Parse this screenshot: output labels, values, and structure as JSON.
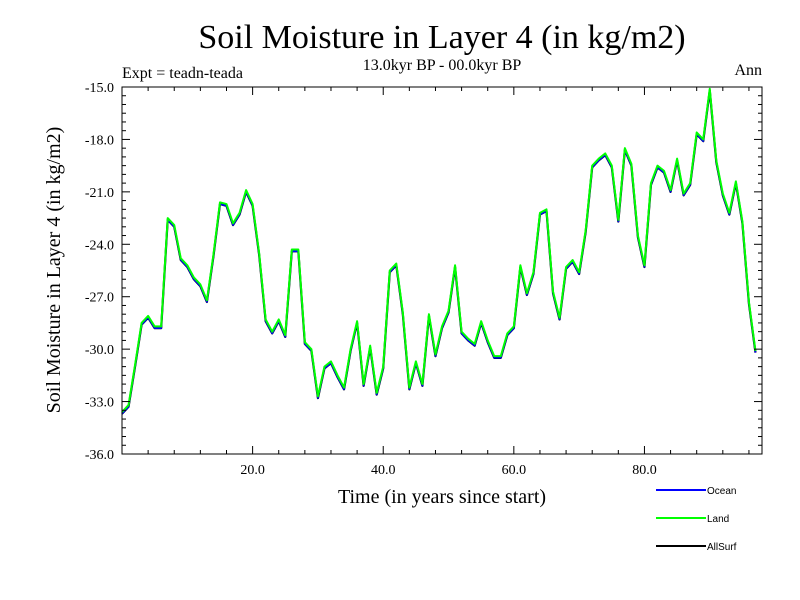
{
  "chart_data": {
    "type": "line",
    "title": "Soil Moisture in Layer 4 (in kg/m2)",
    "subtitle": "13.0kyr BP - 00.0kyr BP",
    "left_annotation": "Expt = teadn-teada",
    "right_annotation": "Ann",
    "xlabel": "Time (in years since start)",
    "ylabel": "Soil Moisture in Layer 4 (in kg/m2)",
    "xlim": [
      0,
      98
    ],
    "ylim": [
      -36.0,
      -15.0
    ],
    "x_ticks": [
      20,
      40,
      60,
      80
    ],
    "x_tick_labels": [
      "20.0",
      "40.0",
      "60.0",
      "80.0"
    ],
    "y_ticks": [
      -36,
      -33,
      -30,
      -27,
      -24,
      -21,
      -18,
      -15
    ],
    "y_tick_labels": [
      "-36.0",
      "-33.0",
      "-30.0",
      "-27.0",
      "-24.0",
      "-21.0",
      "-18.0",
      "-15.0"
    ],
    "legend_position": "bottom-right",
    "x": [
      0,
      1,
      2,
      3,
      4,
      5,
      6,
      7,
      8,
      9,
      10,
      11,
      12,
      13,
      14,
      15,
      16,
      17,
      18,
      19,
      20,
      21,
      22,
      23,
      24,
      25,
      26,
      27,
      28,
      29,
      30,
      31,
      32,
      33,
      34,
      35,
      36,
      37,
      38,
      39,
      40,
      41,
      42,
      43,
      44,
      45,
      46,
      47,
      48,
      49,
      50,
      51,
      52,
      53,
      54,
      55,
      56,
      57,
      58,
      59,
      60,
      61,
      62,
      63,
      64,
      65,
      66,
      67,
      68,
      69,
      70,
      71,
      72,
      73,
      74,
      75,
      76,
      77,
      78,
      79,
      80,
      81,
      82,
      83,
      84,
      85,
      86,
      87,
      88,
      89,
      90,
      91,
      92,
      93,
      94,
      95,
      96,
      97
    ],
    "series": [
      {
        "name": "Ocean",
        "color": "#0000ff",
        "values": [
          -33.7,
          -33.3,
          -31.0,
          -28.6,
          -28.2,
          -28.8,
          -28.8,
          -22.6,
          -23.0,
          -24.9,
          -25.3,
          -26.0,
          -26.4,
          -27.3,
          -24.7,
          -21.7,
          -21.8,
          -22.9,
          -22.3,
          -21.0,
          -21.8,
          -24.6,
          -28.4,
          -29.1,
          -28.4,
          -29.3,
          -24.4,
          -24.4,
          -29.7,
          -30.1,
          -32.8,
          -31.1,
          -30.8,
          -31.6,
          -32.3,
          -30.1,
          -28.5,
          -32.1,
          -29.9,
          -32.6,
          -31.1,
          -25.6,
          -25.2,
          -28.0,
          -32.3,
          -30.8,
          -32.1,
          -28.1,
          -30.4,
          -28.8,
          -27.9,
          -25.3,
          -29.1,
          -29.5,
          -29.8,
          -28.5,
          -29.6,
          -30.5,
          -30.5,
          -29.2,
          -28.8,
          -25.3,
          -26.9,
          -25.7,
          -22.3,
          -22.1,
          -26.8,
          -28.3,
          -25.4,
          -25.0,
          -25.7,
          -23.3,
          -19.6,
          -19.2,
          -18.9,
          -19.6,
          -22.7,
          -18.6,
          -19.5,
          -23.6,
          -25.3,
          -20.6,
          -19.6,
          -19.9,
          -21.0,
          -19.2,
          -21.2,
          -20.6,
          -17.7,
          -18.1,
          -15.2,
          -19.3,
          -21.2,
          -22.3,
          -20.5,
          -22.8,
          -27.4,
          -30.2
        ]
      },
      {
        "name": "Land",
        "color": "#00ff00",
        "values": [
          -33.6,
          -33.2,
          -30.9,
          -28.5,
          -28.1,
          -28.7,
          -28.7,
          -22.5,
          -22.9,
          -24.8,
          -25.2,
          -25.9,
          -26.3,
          -27.2,
          -24.6,
          -21.6,
          -21.7,
          -22.8,
          -22.2,
          -20.9,
          -21.7,
          -24.5,
          -28.3,
          -29.0,
          -28.3,
          -29.2,
          -24.3,
          -24.3,
          -29.6,
          -30.0,
          -32.7,
          -31.0,
          -30.7,
          -31.5,
          -32.2,
          -30.0,
          -28.4,
          -32.0,
          -29.8,
          -32.5,
          -31.0,
          -25.5,
          -25.1,
          -27.9,
          -32.2,
          -30.7,
          -32.0,
          -28.0,
          -30.3,
          -28.7,
          -27.8,
          -25.2,
          -29.0,
          -29.4,
          -29.7,
          -28.4,
          -29.5,
          -30.4,
          -30.4,
          -29.1,
          -28.7,
          -25.2,
          -26.8,
          -25.6,
          -22.2,
          -22.0,
          -26.7,
          -28.2,
          -25.3,
          -24.9,
          -25.6,
          -23.2,
          -19.5,
          -19.1,
          -18.8,
          -19.5,
          -22.6,
          -18.5,
          -19.4,
          -23.5,
          -25.2,
          -20.5,
          -19.5,
          -19.8,
          -20.9,
          -19.1,
          -21.1,
          -20.5,
          -17.6,
          -18.0,
          -15.1,
          -19.2,
          -21.1,
          -22.2,
          -20.4,
          -22.7,
          -27.3,
          -30.1
        ]
      },
      {
        "name": "AllSurf",
        "color": "#000000",
        "values": [
          -33.7,
          -33.3,
          -31.0,
          -28.6,
          -28.2,
          -28.8,
          -28.8,
          -22.6,
          -23.0,
          -24.9,
          -25.3,
          -26.0,
          -26.4,
          -27.3,
          -24.7,
          -21.7,
          -21.8,
          -22.9,
          -22.3,
          -21.0,
          -21.8,
          -24.6,
          -28.4,
          -29.1,
          -28.4,
          -29.3,
          -24.4,
          -24.4,
          -29.7,
          -30.1,
          -32.8,
          -31.1,
          -30.8,
          -31.6,
          -32.3,
          -30.1,
          -28.5,
          -32.1,
          -29.9,
          -32.6,
          -31.1,
          -25.6,
          -25.2,
          -28.0,
          -32.3,
          -30.8,
          -32.1,
          -28.1,
          -30.4,
          -28.8,
          -27.9,
          -25.3,
          -29.1,
          -29.5,
          -29.8,
          -28.5,
          -29.6,
          -30.5,
          -30.5,
          -29.2,
          -28.8,
          -25.3,
          -26.9,
          -25.7,
          -22.3,
          -22.1,
          -26.8,
          -28.3,
          -25.4,
          -25.0,
          -25.7,
          -23.3,
          -19.6,
          -19.2,
          -18.9,
          -19.6,
          -22.7,
          -18.6,
          -19.5,
          -23.6,
          -25.3,
          -20.6,
          -19.6,
          -19.9,
          -21.0,
          -19.2,
          -21.2,
          -20.6,
          -17.7,
          -18.1,
          -15.2,
          -19.3,
          -21.2,
          -22.3,
          -20.5,
          -22.8,
          -27.4,
          -30.2
        ]
      }
    ]
  }
}
